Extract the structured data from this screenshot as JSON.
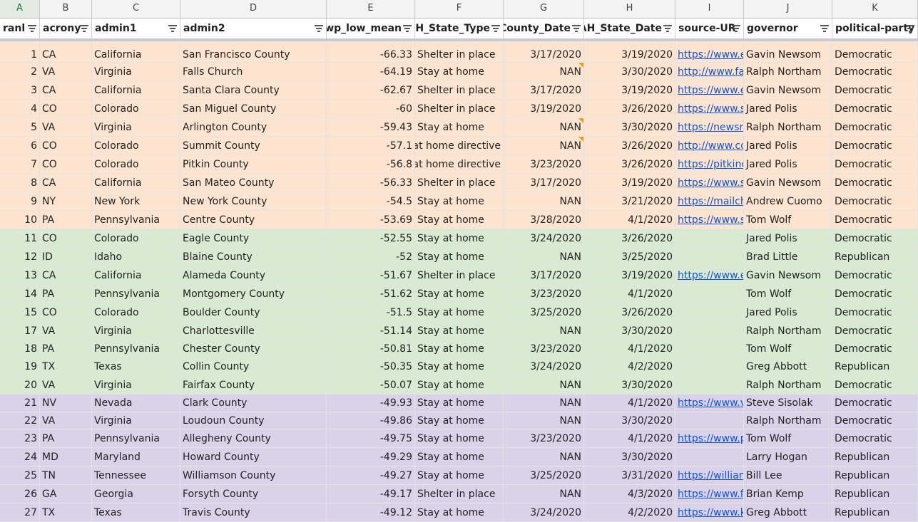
{
  "columns": [
    "A",
    "B",
    "C",
    "D",
    "E",
    "F",
    "G",
    "H",
    "I",
    "J",
    "K"
  ],
  "headers": [
    "ranl",
    "acrony",
    "admin1",
    "admin2",
    "wp_low_mean",
    "AH_State_Type",
    "County_Date",
    "AH_State_Date",
    "source-UR",
    "governor",
    "political-party"
  ],
  "rows": [
    {
      "rank": "1",
      "acr": "CA",
      "admin1": "California",
      "admin2": "San Francisco County",
      "mean": "-66.33",
      "type": "Shelter in place",
      "cdate": "3/17/2020",
      "sdate": "3/19/2020",
      "url": "https://www.e",
      "gov": "Gavin Newsom",
      "party": "Democratic",
      "band": "orange",
      "note": false
    },
    {
      "rank": "2",
      "acr": "VA",
      "admin1": "Virginia",
      "admin2": "Falls Church",
      "mean": "-64.19",
      "type": "Stay at home",
      "cdate": "NAN",
      "sdate": "3/30/2020",
      "url": "http://www.fa",
      "gov": "Ralph Northam",
      "party": "Democratic",
      "band": "orange",
      "note": true
    },
    {
      "rank": "3",
      "acr": "CA",
      "admin1": "California",
      "admin2": "Santa Clara County",
      "mean": "-62.67",
      "type": "Shelter in place",
      "cdate": "3/17/2020",
      "sdate": "3/19/2020",
      "url": "https://www.e",
      "gov": "Gavin Newsom",
      "party": "Democratic",
      "band": "orange",
      "note": false
    },
    {
      "rank": "4",
      "acr": "CO",
      "admin1": "Colorado",
      "admin2": "San Miguel County",
      "mean": "-60",
      "type": "Shelter in place",
      "cdate": "3/19/2020",
      "sdate": "3/26/2020",
      "url": "https://www.s",
      "gov": "Jared Polis",
      "party": "Democratic",
      "band": "orange",
      "note": false
    },
    {
      "rank": "5",
      "acr": "VA",
      "admin1": "Virginia",
      "admin2": "Arlington County",
      "mean": "-59.43",
      "type": "Stay at home",
      "cdate": "NAN",
      "sdate": "3/30/2020",
      "url": "https://newsro",
      "gov": "Ralph Northam",
      "party": "Democratic",
      "band": "orange",
      "note": true
    },
    {
      "rank": "6",
      "acr": "CO",
      "admin1": "Colorado",
      "admin2": "Summit County",
      "mean": "-57.1",
      "type": "at home directive",
      "cdate": "NAN",
      "sdate": "3/26/2020",
      "url": "http://www.co",
      "gov": "Jared Polis",
      "party": "Democratic",
      "band": "orange",
      "note": true
    },
    {
      "rank": "7",
      "acr": "CO",
      "admin1": "Colorado",
      "admin2": "Pitkin County",
      "mean": "-56.8",
      "type": "at home directive",
      "cdate": "3/23/2020",
      "sdate": "3/26/2020",
      "url": "https://pitkinc",
      "gov": "Jared Polis",
      "party": "Democratic",
      "band": "orange",
      "note": false
    },
    {
      "rank": "8",
      "acr": "CA",
      "admin1": "California",
      "admin2": "San Mateo County",
      "mean": "-56.33",
      "type": "Shelter in place",
      "cdate": "3/17/2020",
      "sdate": "3/19/2020",
      "url": "https://www.s",
      "gov": "Gavin Newsom",
      "party": "Democratic",
      "band": "orange",
      "note": false
    },
    {
      "rank": "9",
      "acr": "NY",
      "admin1": "New York",
      "admin2": "New York County",
      "mean": "-54.5",
      "type": "Stay at home",
      "cdate": "NAN",
      "sdate": "3/21/2020",
      "url": "https://mailch",
      "gov": "Andrew Cuomo",
      "party": "Democratic",
      "band": "orange",
      "note": false
    },
    {
      "rank": "10",
      "acr": "PA",
      "admin1": "Pennsylvania",
      "admin2": "Centre County",
      "mean": "-53.69",
      "type": "Stay at home",
      "cdate": "3/28/2020",
      "sdate": "4/1/2020",
      "url": "https://www.s",
      "gov": "Tom Wolf",
      "party": "Democratic",
      "band": "orange",
      "note": false
    },
    {
      "rank": "11",
      "acr": "CO",
      "admin1": "Colorado",
      "admin2": "Eagle County",
      "mean": "-52.55",
      "type": "Stay at home",
      "cdate": "3/24/2020",
      "sdate": "3/26/2020",
      "url": "",
      "gov": "Jared Polis",
      "party": "Democratic",
      "band": "green",
      "note": false
    },
    {
      "rank": "12",
      "acr": "ID",
      "admin1": "Idaho",
      "admin2": "Blaine County",
      "mean": "-52",
      "type": "Stay at home",
      "cdate": "NAN",
      "sdate": "3/25/2020",
      "url": "",
      "gov": "Brad Little",
      "party": "Republican",
      "band": "green",
      "note": false
    },
    {
      "rank": "13",
      "acr": "CA",
      "admin1": "California",
      "admin2": "Alameda County",
      "mean": "-51.67",
      "type": "Shelter in place",
      "cdate": "3/17/2020",
      "sdate": "3/19/2020",
      "url": "https://www.e",
      "gov": "Gavin Newsom",
      "party": "Democratic",
      "band": "green",
      "note": false
    },
    {
      "rank": "14",
      "acr": "PA",
      "admin1": "Pennsylvania",
      "admin2": "Montgomery County",
      "mean": "-51.62",
      "type": "Stay at home",
      "cdate": "3/23/2020",
      "sdate": "4/1/2020",
      "url": "",
      "gov": "Tom Wolf",
      "party": "Democratic",
      "band": "green",
      "note": false
    },
    {
      "rank": "15",
      "acr": "CO",
      "admin1": "Colorado",
      "admin2": "Boulder County",
      "mean": "-51.5",
      "type": "Stay at home",
      "cdate": "3/25/2020",
      "sdate": "3/26/2020",
      "url": "",
      "gov": "Jared Polis",
      "party": "Democratic",
      "band": "green",
      "note": false
    },
    {
      "rank": "17",
      "acr": "VA",
      "admin1": "Virginia",
      "admin2": "Charlottesville",
      "mean": "-51.14",
      "type": "Stay at home",
      "cdate": "NAN",
      "sdate": "3/30/2020",
      "url": "",
      "gov": "Ralph Northam",
      "party": "Democratic",
      "band": "green",
      "note": false
    },
    {
      "rank": "18",
      "acr": "PA",
      "admin1": "Pennsylvania",
      "admin2": "Chester County",
      "mean": "-50.81",
      "type": "Stay at home",
      "cdate": "3/23/2020",
      "sdate": "4/1/2020",
      "url": "",
      "gov": "Tom Wolf",
      "party": "Democratic",
      "band": "green",
      "note": false
    },
    {
      "rank": "19",
      "acr": "TX",
      "admin1": "Texas",
      "admin2": "Collin County",
      "mean": "-50.35",
      "type": "Stay at home",
      "cdate": "3/24/2020",
      "sdate": "4/2/2020",
      "url": "",
      "gov": "Greg Abbott",
      "party": "Republican",
      "band": "green",
      "note": false
    },
    {
      "rank": "20",
      "acr": "VA",
      "admin1": "Virginia",
      "admin2": "Fairfax County",
      "mean": "-50.07",
      "type": "Stay at home",
      "cdate": "NAN",
      "sdate": "3/30/2020",
      "url": "",
      "gov": "Ralph Northam",
      "party": "Democratic",
      "band": "green",
      "note": false
    },
    {
      "rank": "21",
      "acr": "NV",
      "admin1": "Nevada",
      "admin2": "Clark County",
      "mean": "-49.93",
      "type": "Stay at home",
      "cdate": "NAN",
      "sdate": "4/1/2020",
      "url": "https://www.v",
      "gov": "Steve Sisolak",
      "party": "Democratic",
      "band": "purple",
      "note": false
    },
    {
      "rank": "22",
      "acr": "VA",
      "admin1": "Virginia",
      "admin2": "Loudoun County",
      "mean": "-49.86",
      "type": "Stay at home",
      "cdate": "NAN",
      "sdate": "3/30/2020",
      "url": "",
      "gov": "Ralph Northam",
      "party": "Democratic",
      "band": "purple",
      "note": false
    },
    {
      "rank": "23",
      "acr": "PA",
      "admin1": "Pennsylvania",
      "admin2": "Allegheny County",
      "mean": "-49.75",
      "type": "Stay at home",
      "cdate": "3/23/2020",
      "sdate": "4/1/2020",
      "url": "https://www.p",
      "gov": "Tom Wolf",
      "party": "Democratic",
      "band": "purple",
      "note": false
    },
    {
      "rank": "24",
      "acr": "MD",
      "admin1": "Maryland",
      "admin2": "Howard County",
      "mean": "-49.29",
      "type": "Stay at home",
      "cdate": "NAN",
      "sdate": "3/30/2020",
      "url": "",
      "gov": "Larry Hogan",
      "party": "Republican",
      "band": "purple",
      "note": false
    },
    {
      "rank": "25",
      "acr": "TN",
      "admin1": "Tennessee",
      "admin2": "Williamson County",
      "mean": "-49.27",
      "type": "Stay at home",
      "cdate": "3/25/2020",
      "sdate": "3/31/2020",
      "url": "https://william",
      "gov": "Bill Lee",
      "party": "Republican",
      "band": "purple",
      "note": false
    },
    {
      "rank": "26",
      "acr": "GA",
      "admin1": "Georgia",
      "admin2": "Forsyth County",
      "mean": "-49.17",
      "type": "Shelter in place",
      "cdate": "NAN",
      "sdate": "4/3/2020",
      "url": "https://www.f",
      "gov": "Brian Kemp",
      "party": "Republican",
      "band": "purple",
      "note": false
    },
    {
      "rank": "27",
      "acr": "TX",
      "admin1": "Texas",
      "admin2": "Travis County",
      "mean": "-49.12",
      "type": "Stay at home",
      "cdate": "3/24/2020",
      "sdate": "4/2/2020",
      "url": "https://www.k",
      "gov": "Greg Abbott",
      "party": "Republican",
      "band": "purple",
      "note": false
    }
  ],
  "colors": {
    "orange": "#fce4d0",
    "green": "#d9ead3",
    "purple": "#dad2e9",
    "link": "#1155cc"
  }
}
